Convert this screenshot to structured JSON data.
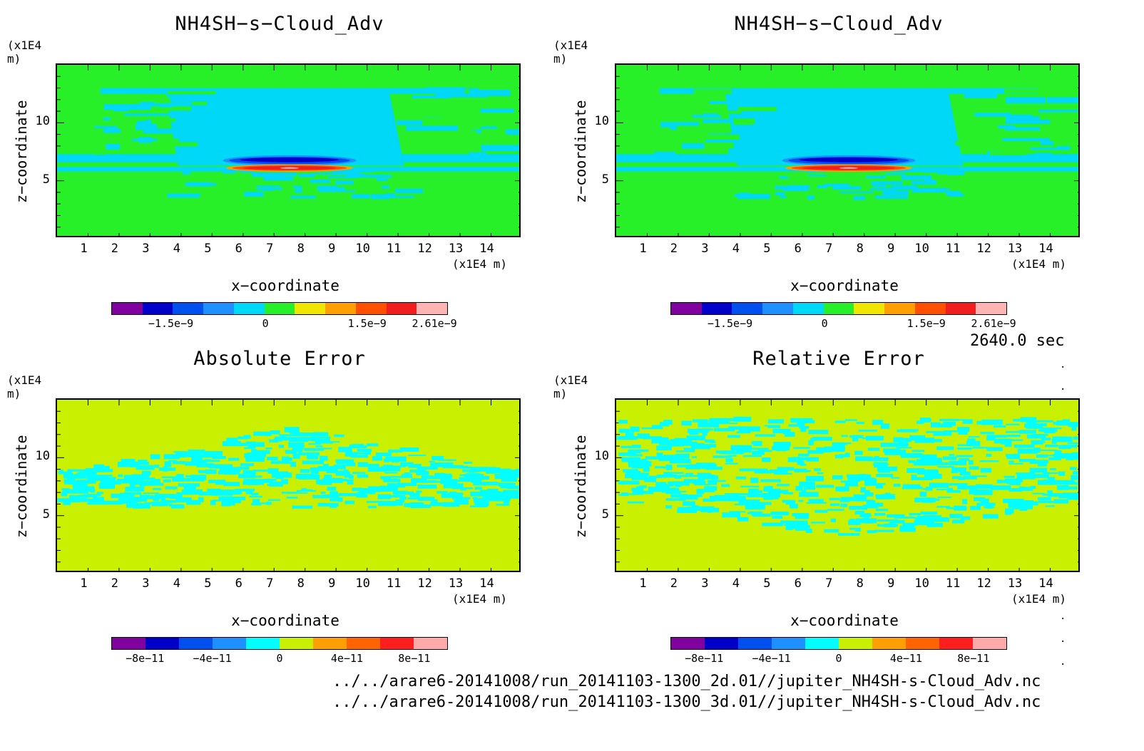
{
  "time_label": "2640.0 sec",
  "paths": [
    "../../arare6-20141008/run_20141103-1300_2d.01//jupiter_NH4SH-s-Cloud_Adv.nc",
    "../../arare6-20141008/run_20141103-1300_3d.01//jupiter_NH4SH-s-Cloud_Adv.nc"
  ],
  "common": {
    "unit_label": "(x1E4 m)",
    "xlabel": "x−coordinate",
    "ylabel": "z−coordinate",
    "x_ticks": [
      "1",
      "2",
      "3",
      "4",
      "5",
      "6",
      "7",
      "8",
      "9",
      "10",
      "11",
      "12",
      "13",
      "14"
    ],
    "y_ticks": [
      "10",
      "5"
    ]
  },
  "panels": [
    {
      "title": "NH4SH−s−Cloud_Adv",
      "kind": "field",
      "cbar_labels": [
        "−1.5e−9",
        "0",
        "1.5e−9",
        "2.61e−9"
      ]
    },
    {
      "title": "NH4SH−s−Cloud_Adv",
      "kind": "field",
      "cbar_labels": [
        "−1.5e−9",
        "0",
        "1.5e−9",
        "2.61e−9"
      ]
    },
    {
      "title": "Absolute Error",
      "kind": "error",
      "cbar_labels": [
        "−8e−11",
        "−4e−11",
        "0",
        "4e−11",
        "8e−11"
      ]
    },
    {
      "title": "Relative Error",
      "kind": "error",
      "cbar_labels": [
        "−8e−11",
        "−4e−11",
        "0",
        "4e−11",
        "8e−11"
      ]
    }
  ],
  "chart_data": [
    {
      "type": "heatmap",
      "title": "NH4SH−s−Cloud_Adv",
      "xlabel": "x−coordinate",
      "ylabel": "z−coordinate",
      "x_unit": "(x1E4 m)",
      "y_unit": "(x1E4 m)",
      "xlim": [
        0,
        15
      ],
      "ylim": [
        0,
        15
      ],
      "colorbar_ticks": [
        "−1.5e−9",
        "0",
        "1.5e−9",
        "2.61e−9"
      ],
      "colors": [
        "#8000a0",
        "#0000c8",
        "#0050f0",
        "#1e90ff",
        "#00d8f8",
        "#28f028",
        "#f0e600",
        "#ffa000",
        "#ff5000",
        "#f01e1e",
        "#ffb4b4"
      ]
    },
    {
      "type": "heatmap",
      "title": "NH4SH−s−Cloud_Adv",
      "xlabel": "x−coordinate",
      "ylabel": "z−coordinate",
      "x_unit": "(x1E4 m)",
      "y_unit": "(x1E4 m)",
      "xlim": [
        0,
        15
      ],
      "ylim": [
        0,
        15
      ],
      "colorbar_ticks": [
        "−1.5e−9",
        "0",
        "1.5e−9",
        "2.61e−9"
      ],
      "colors": [
        "#8000a0",
        "#0000c8",
        "#0050f0",
        "#1e90ff",
        "#00d8f8",
        "#28f028",
        "#f0e600",
        "#ffa000",
        "#ff5000",
        "#f01e1e",
        "#ffb4b4"
      ]
    },
    {
      "type": "heatmap",
      "title": "Absolute Error",
      "xlabel": "x−coordinate",
      "ylabel": "z−coordinate",
      "x_unit": "(x1E4 m)",
      "y_unit": "(x1E4 m)",
      "xlim": [
        0,
        15
      ],
      "ylim": [
        0,
        15
      ],
      "colorbar_ticks": [
        "−8e−11",
        "−4e−11",
        "0",
        "4e−11",
        "8e−11"
      ],
      "colors": [
        "#8000a0",
        "#0000c8",
        "#0050f0",
        "#1e90ff",
        "#00ffff",
        "#c8f000",
        "#ffa000",
        "#ff6400",
        "#ff1e1e",
        "#ffaaaa"
      ]
    },
    {
      "type": "heatmap",
      "title": "Relative Error",
      "xlabel": "x−coordinate",
      "ylabel": "z−coordinate",
      "x_unit": "(x1E4 m)",
      "y_unit": "(x1E4 m)",
      "xlim": [
        0,
        15
      ],
      "ylim": [
        0,
        15
      ],
      "colorbar_ticks": [
        "−8e−11",
        "−4e−11",
        "0",
        "4e−11",
        "8e−11"
      ],
      "colors": [
        "#8000a0",
        "#0000c8",
        "#0050f0",
        "#1e90ff",
        "#00ffff",
        "#c8f000",
        "#ffa000",
        "#ff6400",
        "#ff1e1e",
        "#ffaaaa"
      ]
    }
  ]
}
